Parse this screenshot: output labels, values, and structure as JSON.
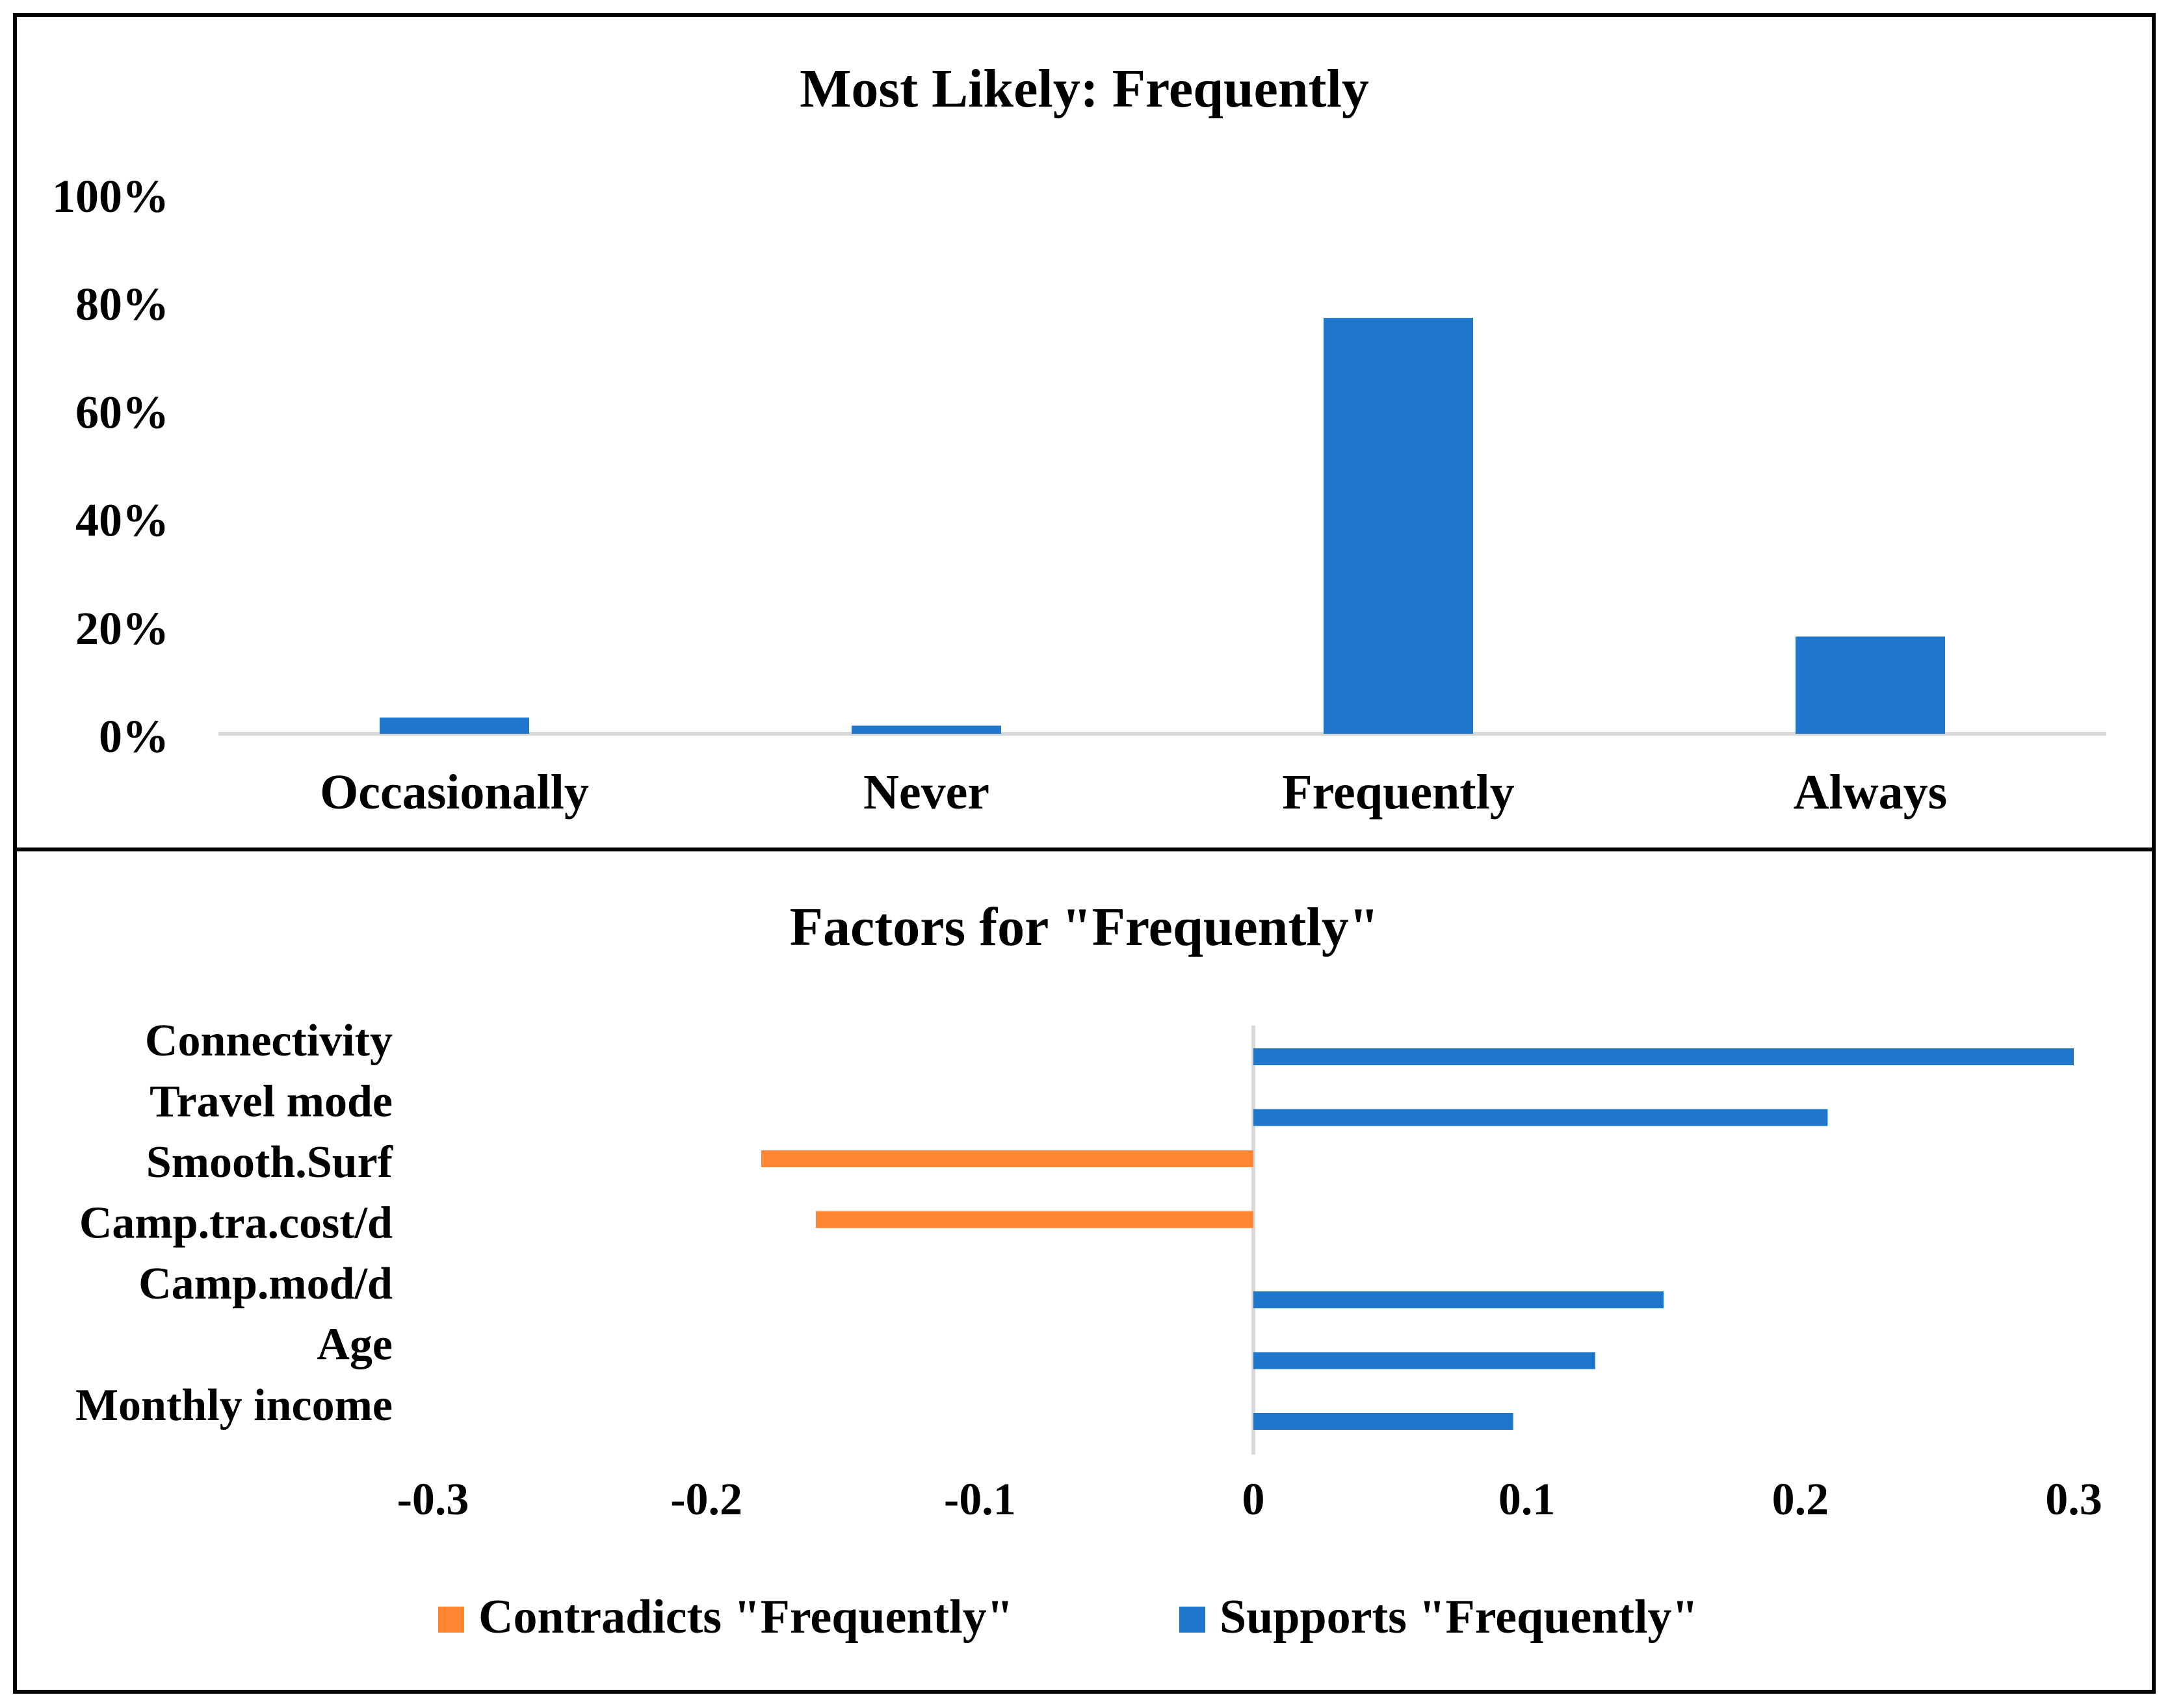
{
  "chart_data": [
    {
      "type": "bar",
      "title": "Most Likely: Frequently",
      "categories": [
        "Occasionally",
        "Never",
        "Frequently",
        "Always"
      ],
      "values": [
        3,
        1.5,
        77,
        18
      ],
      "value_format": "percent",
      "ylim": [
        0,
        100
      ],
      "yticks": [
        0,
        20,
        40,
        60,
        80,
        100
      ],
      "ytick_labels": [
        "0%",
        "20%",
        "40%",
        "60%",
        "80%",
        "100%"
      ],
      "xlabel": "",
      "ylabel": "",
      "grid": false,
      "color": "#1f77cc"
    },
    {
      "type": "bar",
      "orientation": "horizontal",
      "title": "Factors for \"Frequently\"",
      "categories": [
        "Connectivity",
        "Travel mode",
        "Smooth.Surf",
        "Camp.tra.cost/d",
        "Camp.mod/d",
        "Age",
        "Monthly income"
      ],
      "series": [
        {
          "name": "Contradicts \"Frequently\"",
          "color": "#ff8533",
          "values": [
            null,
            null,
            -0.18,
            -0.16,
            null,
            null,
            null
          ]
        },
        {
          "name": "Supports \"Frequently\"",
          "color": "#1f77cc",
          "values": [
            0.3,
            0.21,
            null,
            null,
            0.15,
            0.125,
            0.095
          ]
        }
      ],
      "xlim": [
        -0.3,
        0.3
      ],
      "xticks": [
        -0.3,
        -0.2,
        -0.1,
        0,
        0.1,
        0.2,
        0.3
      ],
      "xtick_labels": [
        "-0.3",
        "-0.2",
        "-0.1",
        "0",
        "0.1",
        "0.2",
        "0.3"
      ],
      "legend": "bottom",
      "grid": false
    }
  ]
}
